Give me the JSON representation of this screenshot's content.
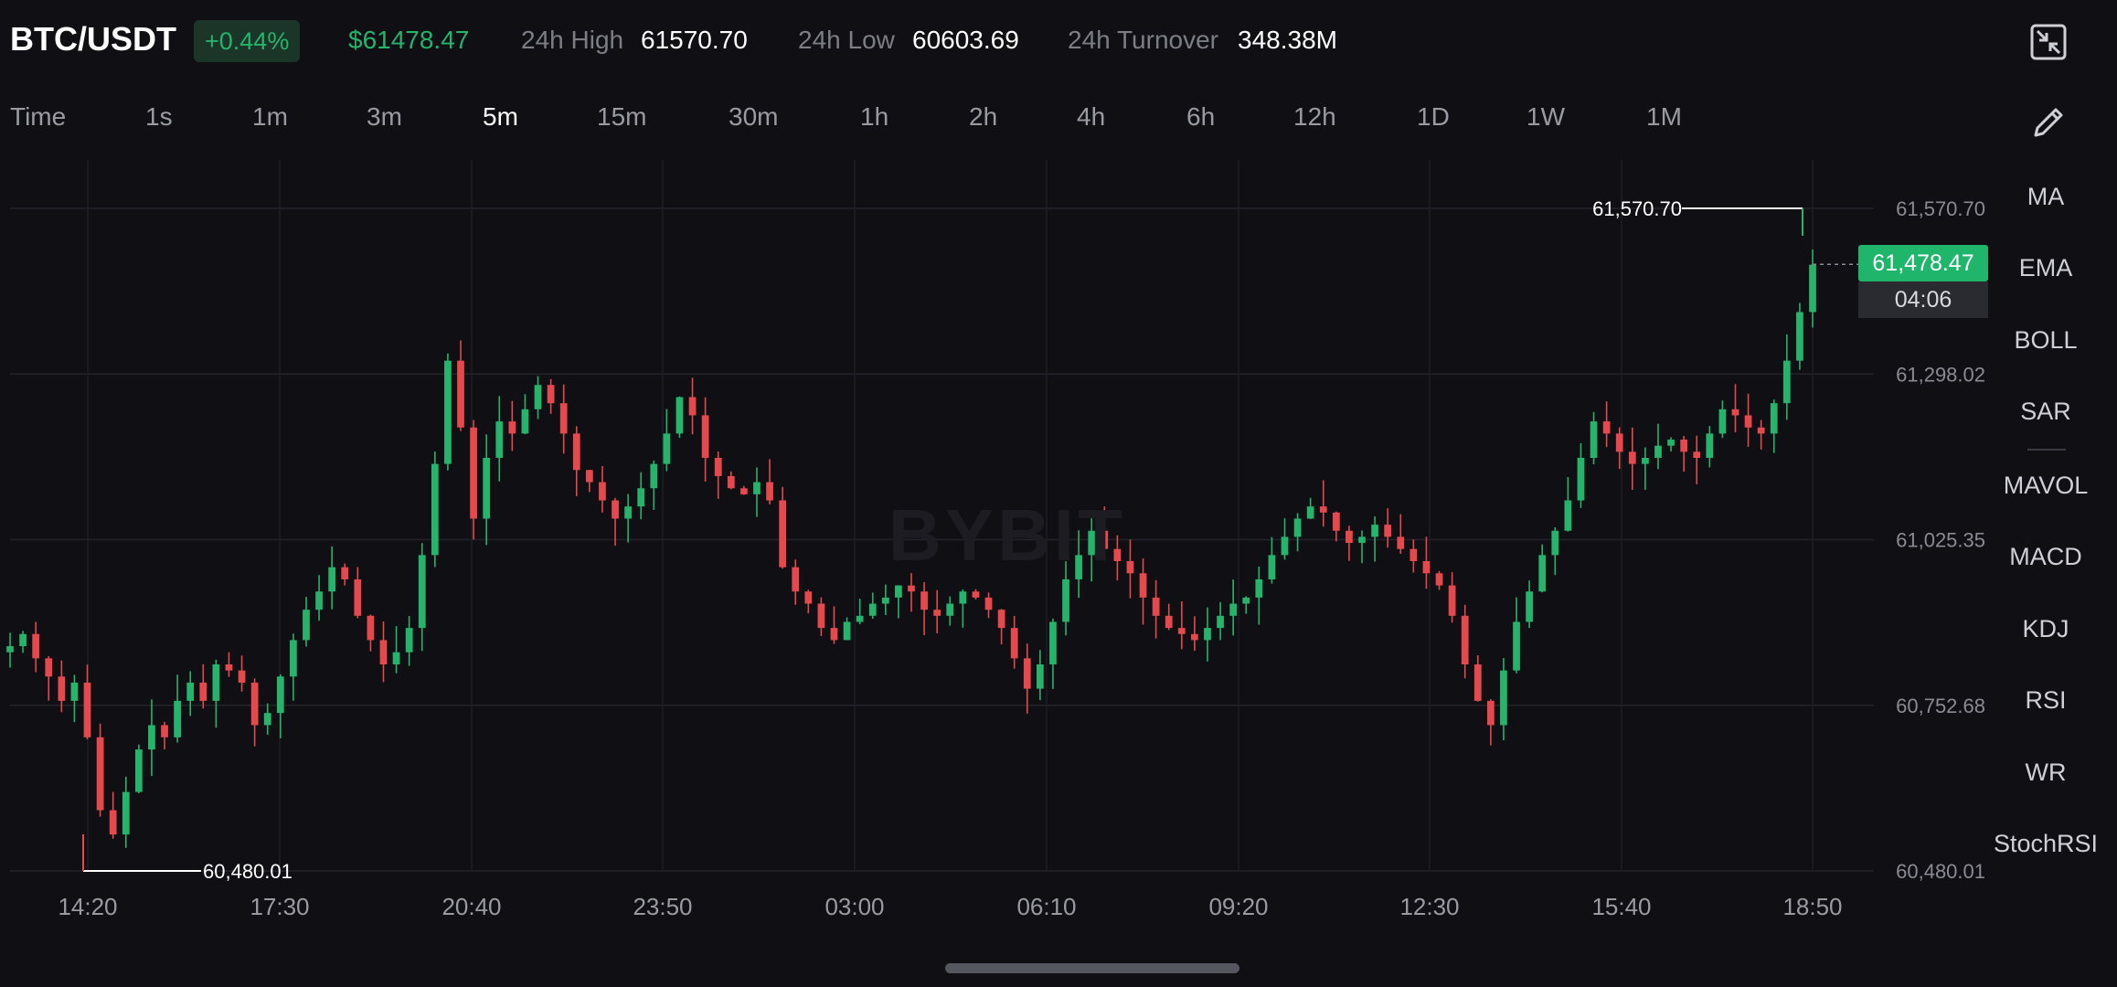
{
  "header": {
    "pair": "BTC/USDT",
    "change": "+0.44%",
    "last_price": "$61478.47",
    "high_label": "24h High",
    "high_value": "61570.70",
    "low_label": "24h Low",
    "low_value": "60603.69",
    "turnover_label": "24h Turnover",
    "turnover_value": "348.38M"
  },
  "timeframes": [
    "Time",
    "1s",
    "1m",
    "3m",
    "5m",
    "15m",
    "30m",
    "1h",
    "2h",
    "4h",
    "6h",
    "12h",
    "1D",
    "1W",
    "1M"
  ],
  "active_timeframe": "5m",
  "indicators": [
    "MA",
    "EMA",
    "BOLL",
    "SAR",
    "MAVOL",
    "MACD",
    "KDJ",
    "RSI",
    "WR",
    "StochRSI"
  ],
  "icons": {
    "fullscreen": "minimize-icon",
    "draw": "pencil-icon"
  },
  "colors": {
    "up": "#26b36b",
    "down": "#e5484d",
    "background": "#101014",
    "price_tag": "#1fb56a"
  },
  "price_tag": {
    "value": "61,478.47",
    "countdown": "04:06"
  },
  "watermark": "BYBIT",
  "chart_data": {
    "type": "candlestick",
    "y_ticks": [
      "61,570.70",
      "61,298.02",
      "61,025.35",
      "60,752.68",
      "60,480.01"
    ],
    "x_ticks": [
      "14:20",
      "17:30",
      "20:40",
      "23:50",
      "03:00",
      "06:10",
      "09:20",
      "12:30",
      "15:40",
      "18:50"
    ],
    "ylim": [
      60480.01,
      61570.7
    ],
    "max_marker": "61,570.70",
    "min_marker": "60,480.01",
    "current_price": 61478.47,
    "closes": [
      60850,
      60870,
      60830,
      60800,
      60760,
      60790,
      60700,
      60580,
      60540,
      60610,
      60680,
      60720,
      60700,
      60760,
      60790,
      60760,
      60820,
      60810,
      60790,
      60720,
      60740,
      60800,
      60860,
      60910,
      60940,
      60980,
      60960,
      60900,
      60860,
      60820,
      60840,
      60880,
      61000,
      61150,
      61320,
      61210,
      61060,
      61160,
      61220,
      61200,
      61240,
      61280,
      61250,
      61200,
      61140,
      61120,
      61090,
      61060,
      61080,
      61110,
      61150,
      61200,
      61260,
      61230,
      61160,
      61130,
      61110,
      61100,
      61120,
      61090,
      60980,
      60940,
      60920,
      60880,
      60860,
      60890,
      60900,
      60920,
      60930,
      60950,
      60940,
      60910,
      60900,
      60920,
      60940,
      60930,
      60910,
      60880,
      60830,
      60780,
      60820,
      60890,
      60960,
      61000,
      61040,
      61010,
      60990,
      60970,
      60930,
      60900,
      60880,
      60870,
      60860,
      60880,
      60900,
      60920,
      60930,
      60960,
      61000,
      61030,
      61060,
      61080,
      61070,
      61040,
      61020,
      61030,
      61050,
      61030,
      61010,
      60990,
      60970,
      60950,
      60900,
      60820,
      60760,
      60720,
      60810,
      60890,
      60940,
      61000,
      61040,
      61090,
      61160,
      61220,
      61200,
      61170,
      61150,
      61160,
      61180,
      61190,
      61170,
      61160,
      61200,
      61240,
      61230,
      61210,
      61200,
      61250,
      61320,
      61400,
      61478
    ]
  }
}
